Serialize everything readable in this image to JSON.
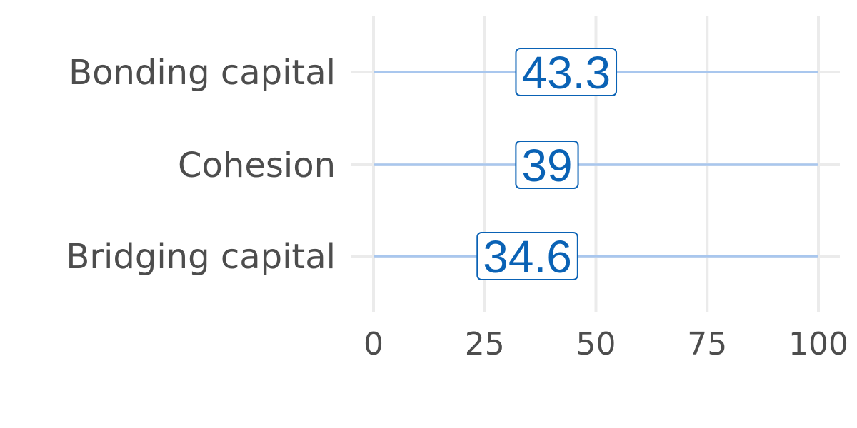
{
  "chart_data": {
    "type": "bar",
    "categories": [
      "Bonding capital",
      "Cohesion",
      "Bridging capital"
    ],
    "values": [
      43.3,
      39,
      34.6
    ],
    "value_labels": [
      "43.3",
      "39",
      "34.6"
    ],
    "xlim": [
      0,
      100
    ],
    "x_ticks": [
      0,
      25,
      50,
      75,
      100
    ],
    "x_tick_labels": [
      "0",
      "25",
      "50",
      "75",
      "100"
    ],
    "title": "",
    "xlabel": "",
    "ylabel": "",
    "grid": true,
    "legend": "none",
    "colors": {
      "value_label": "#0a62b5",
      "track": "#a9c7ee",
      "grid": "#ebebeb",
      "text": "#4d4d4d"
    }
  }
}
